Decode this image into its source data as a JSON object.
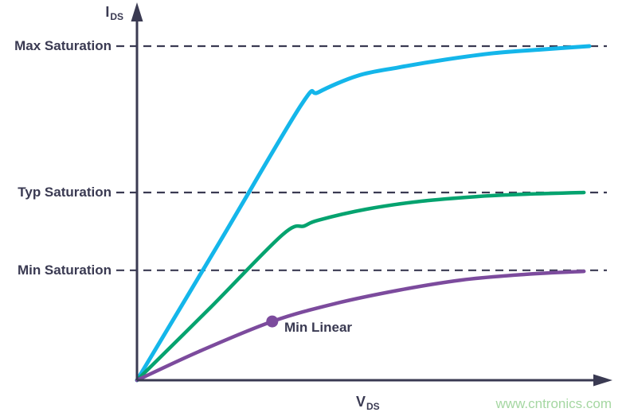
{
  "page": {
    "background": "#ffffff"
  },
  "colors": {
    "page_bg": "#ffffff",
    "axis": "#3a3a52",
    "text": "#3a3a52",
    "max_curve": "#14b6ea",
    "typ_curve": "#05a36f",
    "min_curve": "#7c4b9d",
    "watermark": "#a5d7a2"
  },
  "watermark": {
    "text": "www.cntronics.com"
  },
  "chart_data": {
    "type": "line",
    "title": "",
    "xlabel": "V_DS",
    "ylabel": "I_DS",
    "xlabel_main": "V",
    "xlabel_sub": "DS",
    "ylabel_main": "I",
    "ylabel_sub": "DS",
    "grid": false,
    "axes_numeric": false,
    "x_range": [
      0,
      1
    ],
    "y_range": [
      0,
      1
    ],
    "series": [
      {
        "name": "Max",
        "color_key": "max_curve",
        "points": [
          [
            0,
            0
          ],
          [
            0.183,
            0.414
          ],
          [
            0.363,
            0.824
          ],
          [
            0.401,
            0.862
          ],
          [
            0.489,
            0.912
          ],
          [
            0.577,
            0.936
          ],
          [
            0.683,
            0.96
          ],
          [
            0.789,
            0.979
          ],
          [
            0.894,
            0.99
          ],
          [
            1.0,
            1.0
          ]
        ]
      },
      {
        "name": "Typ",
        "color_key": "typ_curve",
        "points": [
          [
            0,
            0
          ],
          [
            0.162,
            0.217
          ],
          [
            0.322,
            0.436
          ],
          [
            0.37,
            0.462
          ],
          [
            0.401,
            0.479
          ],
          [
            0.507,
            0.512
          ],
          [
            0.63,
            0.536
          ],
          [
            0.754,
            0.55
          ],
          [
            0.859,
            0.557
          ],
          [
            0.988,
            0.562
          ]
        ]
      },
      {
        "name": "Min",
        "color_key": "min_curve",
        "points": [
          [
            0,
            0
          ],
          [
            0.137,
            0.086
          ],
          [
            0.299,
            0.176
          ],
          [
            0.437,
            0.229
          ],
          [
            0.577,
            0.269
          ],
          [
            0.718,
            0.3
          ],
          [
            0.859,
            0.317
          ],
          [
            0.988,
            0.326
          ]
        ]
      }
    ],
    "reference_lines": [
      {
        "label": "Max Saturation",
        "level": 1.0
      },
      {
        "label": "Typ Saturation",
        "level": 0.562
      },
      {
        "label": "Min Saturation",
        "level": 0.329
      }
    ],
    "annotations": [
      {
        "label": "Min Linear",
        "x": 0.299,
        "y": 0.176,
        "marker": "dot",
        "series": "Min"
      }
    ]
  }
}
